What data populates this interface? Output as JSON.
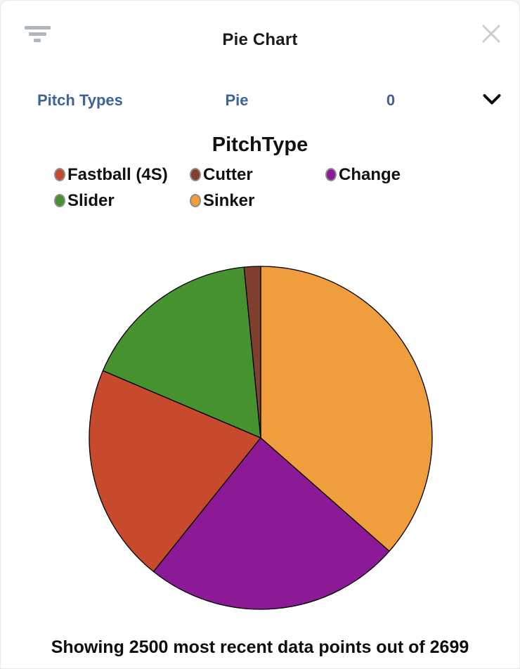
{
  "header": {
    "title": "Pie Chart"
  },
  "controls": {
    "dataset_label": "Pitch Types",
    "chart_type": "Pie",
    "selected_count": "0"
  },
  "chart_data": {
    "type": "pie",
    "title": "PitchType",
    "legend_position": "top",
    "legend": [
      {
        "label": "Fastball (4S)",
        "color": "#c74a2c"
      },
      {
        "label": "Cutter",
        "color": "#833f2d"
      },
      {
        "label": "Change",
        "color": "#8c1a96"
      },
      {
        "label": "Slider",
        "color": "#45922f"
      },
      {
        "label": "Sinker",
        "color": "#f09d3d"
      }
    ],
    "slices_clockwise_from_top": [
      {
        "label": "Sinker",
        "fraction": 0.365,
        "color": "#f09d3d"
      },
      {
        "label": "Change",
        "fraction": 0.2425,
        "color": "#8c1a96"
      },
      {
        "label": "Fastball (4S)",
        "fraction": 0.2065,
        "color": "#c74a2c"
      },
      {
        "label": "Slider",
        "fraction": 0.1705,
        "color": "#45922f"
      },
      {
        "label": "Cutter",
        "fraction": 0.0155,
        "color": "#833f2d"
      }
    ],
    "start_angle_deg": 0,
    "direction": "clockwise",
    "outline_color": "#000000",
    "dot_border_color": "#8c8c8c"
  },
  "footer": {
    "status": "Showing 2500 most recent data points out of 2699"
  },
  "ui_colors": {
    "accent_blue": "#3d6399",
    "filter_icon_gray": "#aeb6c0",
    "close_icon_gray": "#c9cdd3",
    "chevron_black": "#0b0b0b"
  }
}
